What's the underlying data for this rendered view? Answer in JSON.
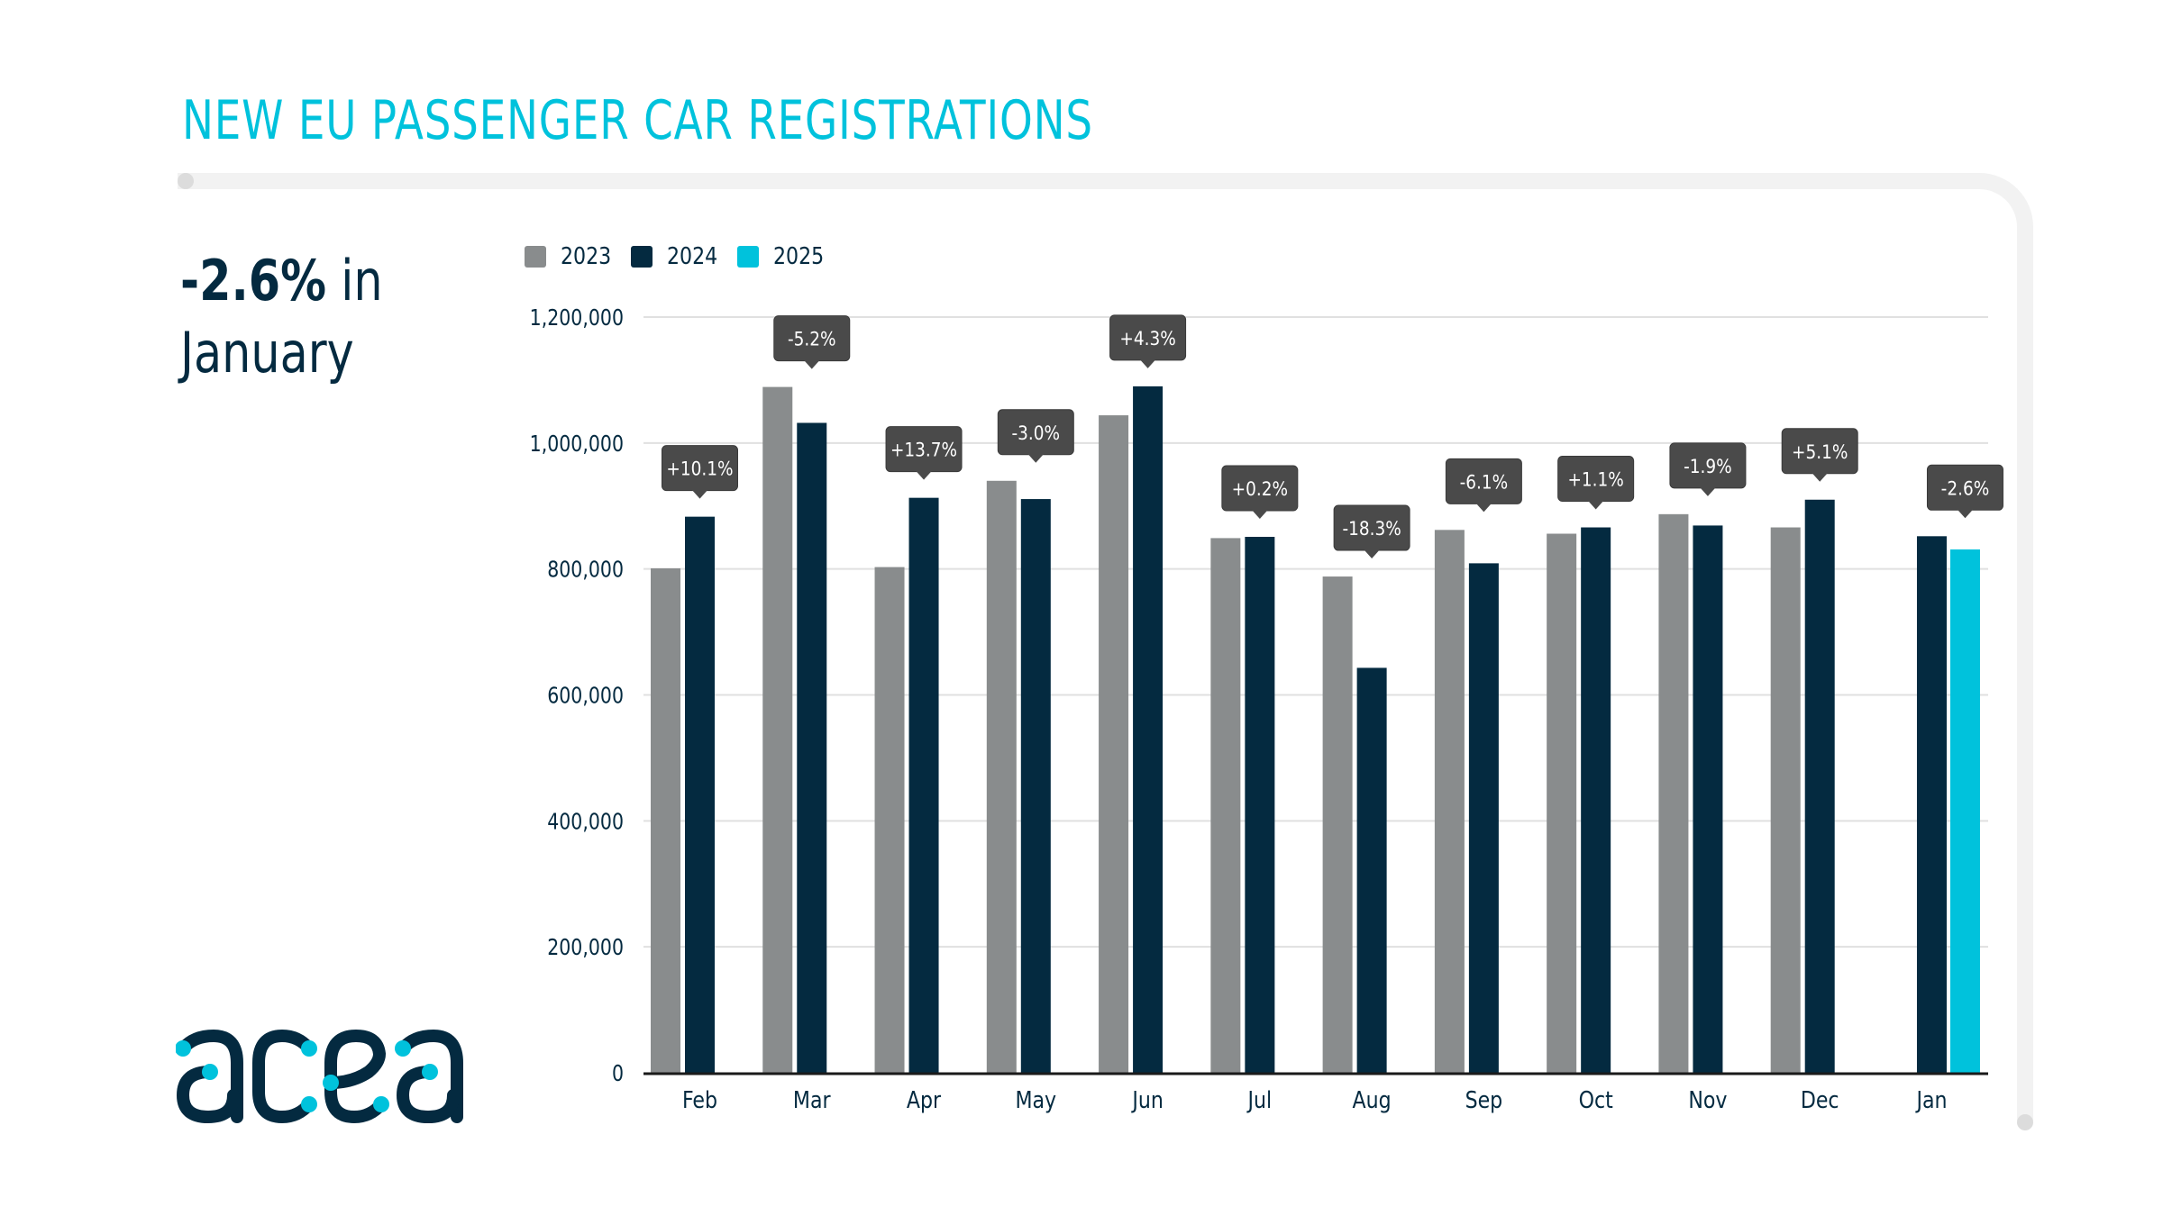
{
  "title": "NEW EU PASSENGER CAR REGISTRATIONS",
  "headline": {
    "value": "-2.6%",
    "suffix": " in",
    "period": "January"
  },
  "logo": {
    "text": "acea",
    "dark_color": "#042a40",
    "accent_color": "#00c2dc"
  },
  "colors": {
    "title": "#00c2dc",
    "text": "#042a40",
    "tooltip_bg": "#4a4a4a",
    "gridline": "#e0e0e0",
    "axis": "#1a1a1a"
  },
  "chart_data": {
    "type": "bar",
    "title": "NEW EU PASSENGER CAR REGISTRATIONS",
    "xlabel": "",
    "ylabel": "",
    "ylim": [
      0,
      1200000
    ],
    "grid": true,
    "legend_position": "top-left",
    "categories": [
      "Feb",
      "Mar",
      "Apr",
      "May",
      "Jun",
      "Jul",
      "Aug",
      "Sep",
      "Oct",
      "Nov",
      "Dec",
      "Jan"
    ],
    "yticks": [
      0,
      200000,
      400000,
      600000,
      800000,
      1000000,
      1200000
    ],
    "ytick_labels": [
      "0",
      "200,000",
      "400,000",
      "600,000",
      "800,000",
      "1,000,000",
      "1,200,000"
    ],
    "series": [
      {
        "name": "2023",
        "color": "#898c8d",
        "values": [
          801000,
          1089000,
          803000,
          940000,
          1044000,
          849000,
          788000,
          862000,
          856000,
          887000,
          866000,
          null
        ]
      },
      {
        "name": "2024",
        "color": "#042a40",
        "values": [
          883000,
          1032000,
          913000,
          911000,
          1090000,
          851000,
          643000,
          809000,
          866000,
          869000,
          910000,
          852000
        ]
      },
      {
        "name": "2025",
        "color": "#00c2dc",
        "values": [
          null,
          null,
          null,
          null,
          null,
          null,
          null,
          null,
          null,
          null,
          null,
          831000
        ]
      }
    ],
    "annotations": [
      "+10.1%",
      "-5.2%",
      "+13.7%",
      "-3.0%",
      "+4.3%",
      "+0.2%",
      "-18.3%",
      "-6.1%",
      "+1.1%",
      "-1.9%",
      "+5.1%",
      "-2.6%"
    ]
  }
}
